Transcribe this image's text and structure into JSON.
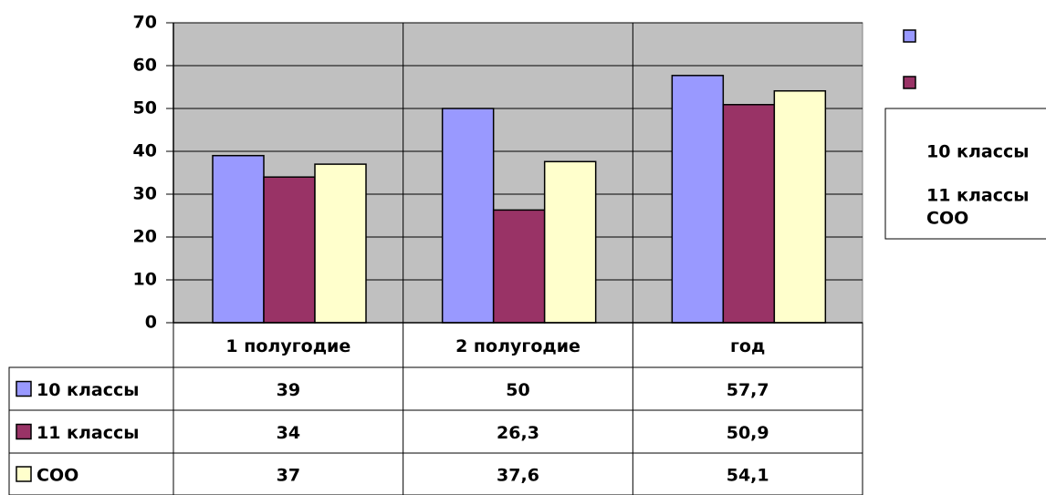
{
  "chart_data": {
    "type": "bar",
    "categories": [
      "1 полугодие",
      "2 полугодие",
      "год"
    ],
    "series": [
      {
        "name": "10 классы",
        "color": "#9999ff",
        "values": [
          39,
          50,
          57.7
        ],
        "value_labels": [
          "39",
          "50",
          "57,7"
        ]
      },
      {
        "name": "11 классы",
        "color": "#993366",
        "values": [
          34,
          26.3,
          50.9
        ],
        "value_labels": [
          "34",
          "26,3",
          "50,9"
        ]
      },
      {
        "name": "СОО",
        "color": "#ffffcc",
        "values": [
          37,
          37.6,
          54.1
        ],
        "value_labels": [
          "37",
          "37,6",
          "54,1"
        ]
      }
    ],
    "ylim": [
      0,
      70
    ],
    "yticks": [
      0,
      10,
      20,
      30,
      40,
      50,
      60,
      70
    ],
    "grid": true,
    "legend": "right",
    "plot_background": "#c0c0c0",
    "data_table": true
  }
}
